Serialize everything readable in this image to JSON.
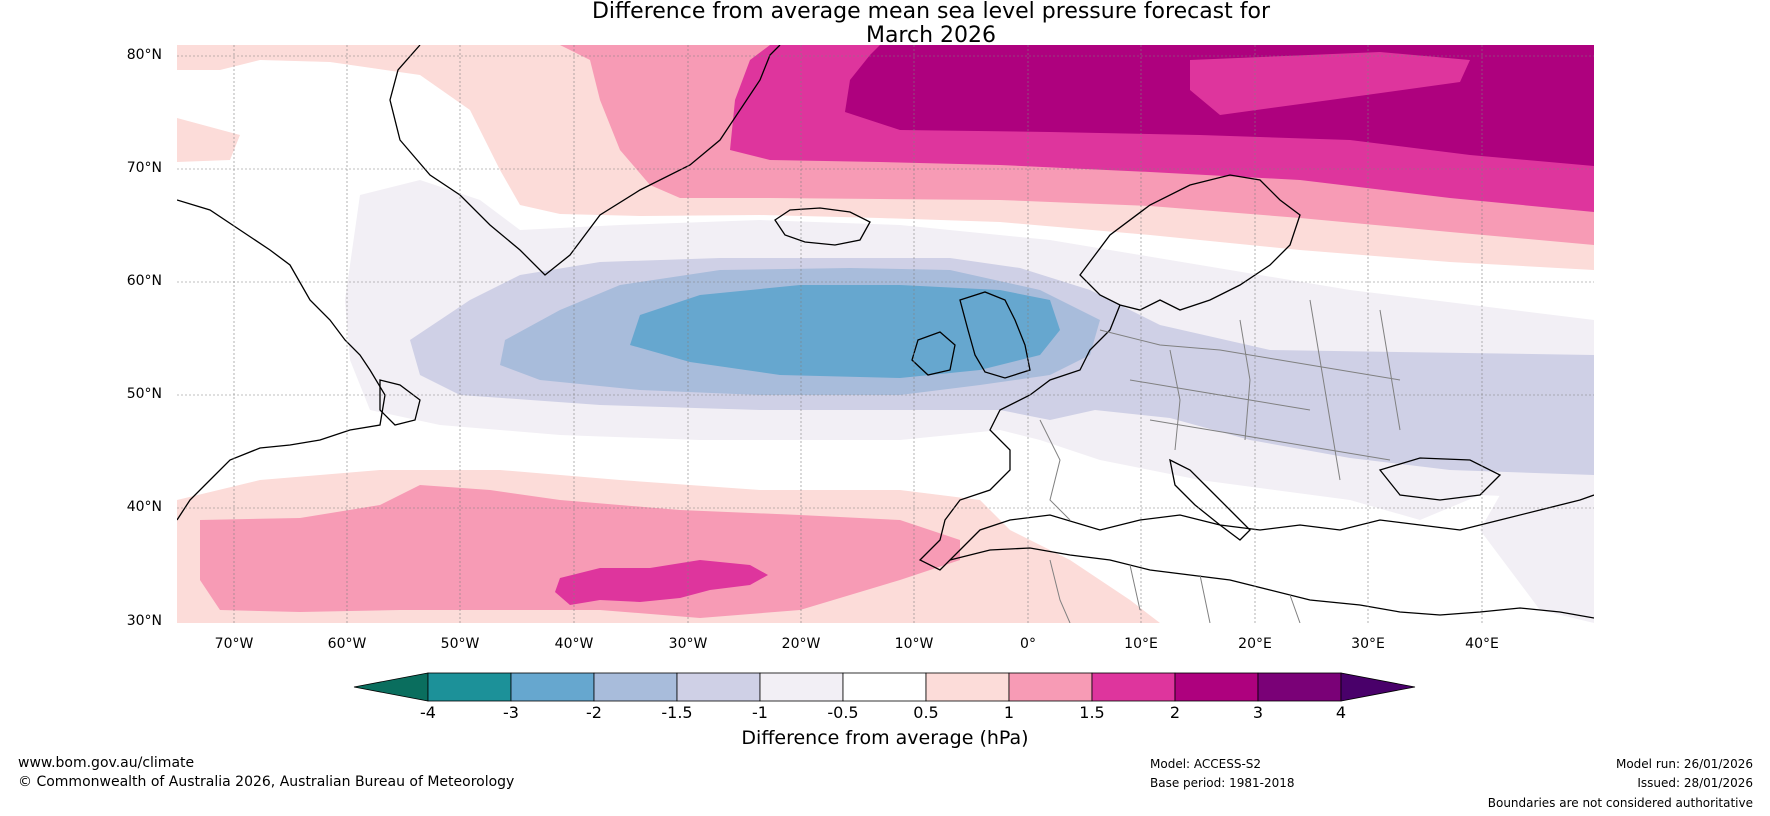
{
  "title": {
    "line1": "Difference from average mean sea level pressure forecast for",
    "line2": "March 2026"
  },
  "axes": {
    "lat_labels": [
      "80°N",
      "70°N",
      "60°N",
      "50°N",
      "40°N",
      "30°N"
    ],
    "lon_labels": [
      "70°W",
      "60°W",
      "50°W",
      "40°W",
      "30°W",
      "20°W",
      "10°W",
      "0°",
      "10°E",
      "20°E",
      "30°E",
      "40°E"
    ]
  },
  "colorbar": {
    "title": "Difference from average (hPa)",
    "labels": [
      "-4",
      "-3",
      "-2",
      "-1.5",
      "-1",
      "-0.5",
      "0.5",
      "1",
      "1.5",
      "2",
      "3",
      "4"
    ],
    "colors": [
      "#0a6e5e",
      "#1c9199",
      "#66a7cf",
      "#a8bcdb",
      "#cfd0e6",
      "#f2eff5",
      "#ffffff",
      "#fcdcd9",
      "#f79bb5",
      "#de359d",
      "#ae017e",
      "#7a0177",
      "#49006a"
    ]
  },
  "footer": {
    "website": "www.bom.gov.au/climate",
    "copyright": "© Commonwealth of Australia 2026, Australian Bureau of Meteorology",
    "model": "Model: ACCESS-S2",
    "base_period": "Base period: 1981-2018",
    "model_run": "Model run: 26/01/2026",
    "issued": "Issued: 28/01/2026",
    "disclaimer": "Boundaries are not considered authoritative"
  }
}
